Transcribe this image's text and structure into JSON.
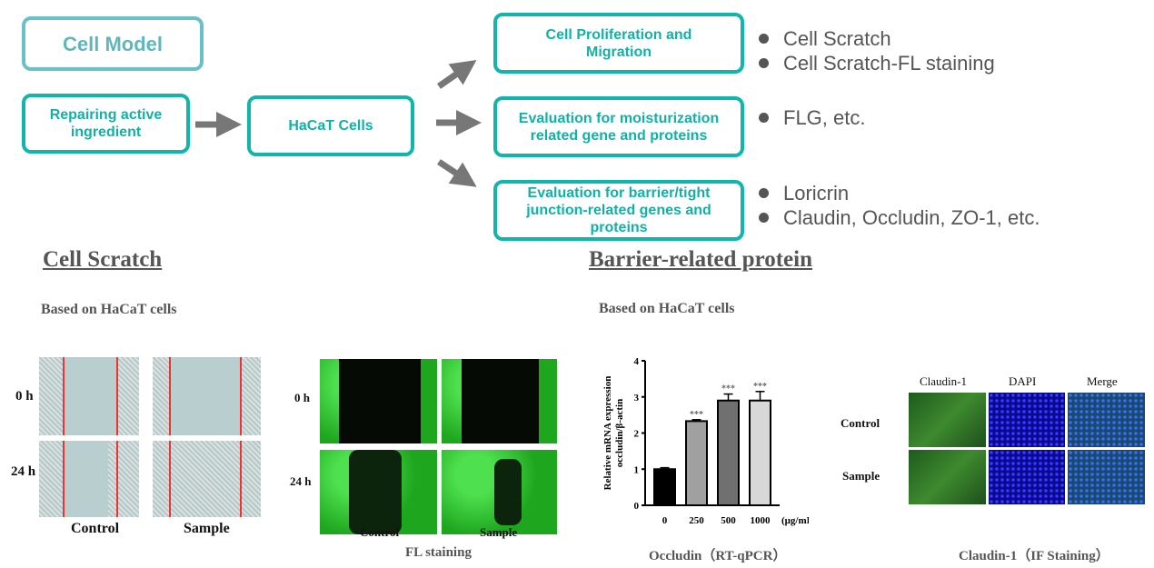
{
  "flow": {
    "model": "Cell Model",
    "ingredient": "Repairing active ingredient",
    "cells": "HaCaT Cells",
    "targets": [
      {
        "title": "Cell Proliferation and Migration",
        "bullets": [
          "Cell Scratch",
          "Cell Scratch-FL staining"
        ]
      },
      {
        "title": "Evaluation for moisturization related gene and proteins",
        "bullets": [
          "FLG, etc."
        ]
      },
      {
        "title": "Evaluation for barrier/tight junction-related genes  and proteins",
        "bullets": [
          "Loricrin",
          "Claudin, Occludin, ZO-1, etc."
        ]
      }
    ],
    "accent": "#12b5ab"
  },
  "scratch": {
    "heading": "Cell Scratch",
    "based": "Based on HaCaT cells",
    "rows": [
      "0 h",
      "24 h"
    ],
    "cols": [
      "Control",
      "Sample"
    ],
    "fl_rows": [
      "0 h",
      "24 h"
    ],
    "fl_cols": [
      "Control",
      "Sample"
    ],
    "fl_caption": "FL staining"
  },
  "barrier": {
    "heading": "Barrier-related protein",
    "based": "Based on HaCaT cells",
    "chart_caption": "Occludin（RT-qPCR）",
    "if_cols": [
      "Claudin-1",
      "DAPI",
      "Merge"
    ],
    "if_rows": [
      "Control",
      "Sample"
    ],
    "if_caption": "Claudin-1（IF Staining）"
  },
  "chart_data": {
    "type": "bar",
    "categories": [
      "0",
      "250",
      "500",
      "1000"
    ],
    "values": [
      1.0,
      2.33,
      2.9,
      2.9
    ],
    "errors": [
      0.04,
      0.04,
      0.18,
      0.25
    ],
    "significance": [
      "",
      "***",
      "***",
      "***"
    ],
    "colors": [
      "#000000",
      "#a0a0a0",
      "#707070",
      "#d8d8d8"
    ],
    "ylabel_line1": "Relative mRNA expression",
    "ylabel_line2": "occludin/β-actin",
    "x_unit": "(μg/mL)",
    "ylim": [
      0,
      4
    ],
    "yticks": [
      "0",
      "1",
      "2",
      "3",
      "4"
    ]
  }
}
